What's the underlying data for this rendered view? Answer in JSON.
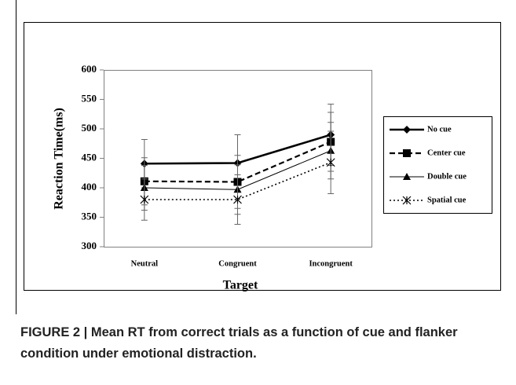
{
  "chart_data": {
    "type": "line",
    "ylabel": "Reaction Time(ms)",
    "xlabel": "Target",
    "categories": [
      "Neutral",
      "Congruent",
      "Incongruent"
    ],
    "series": [
      {
        "name": "No cue",
        "color": "#000000",
        "values": [
          441,
          442,
          490
        ],
        "errors": [
          41,
          48,
          52
        ]
      },
      {
        "name": "Center cue",
        "color": "#000000",
        "values": [
          411,
          410,
          478
        ],
        "errors": [
          40,
          45,
          50
        ]
      },
      {
        "name": "Double cue",
        "color": "#000000",
        "values": [
          400,
          397,
          463
        ],
        "errors": [
          38,
          42,
          48
        ]
      },
      {
        "name": "Spatial cue",
        "color": "#000000",
        "values": [
          380,
          380,
          443
        ],
        "errors": [
          35,
          42,
          53
        ]
      }
    ],
    "ylim": [
      300,
      600
    ],
    "yticks": [
      300,
      350,
      400,
      450,
      500,
      550,
      600
    ],
    "grid": false,
    "legend": "right"
  },
  "caption": "FIGURE 2 | Mean RT from correct trials as a function of cue and flanker condition under emotional distraction."
}
